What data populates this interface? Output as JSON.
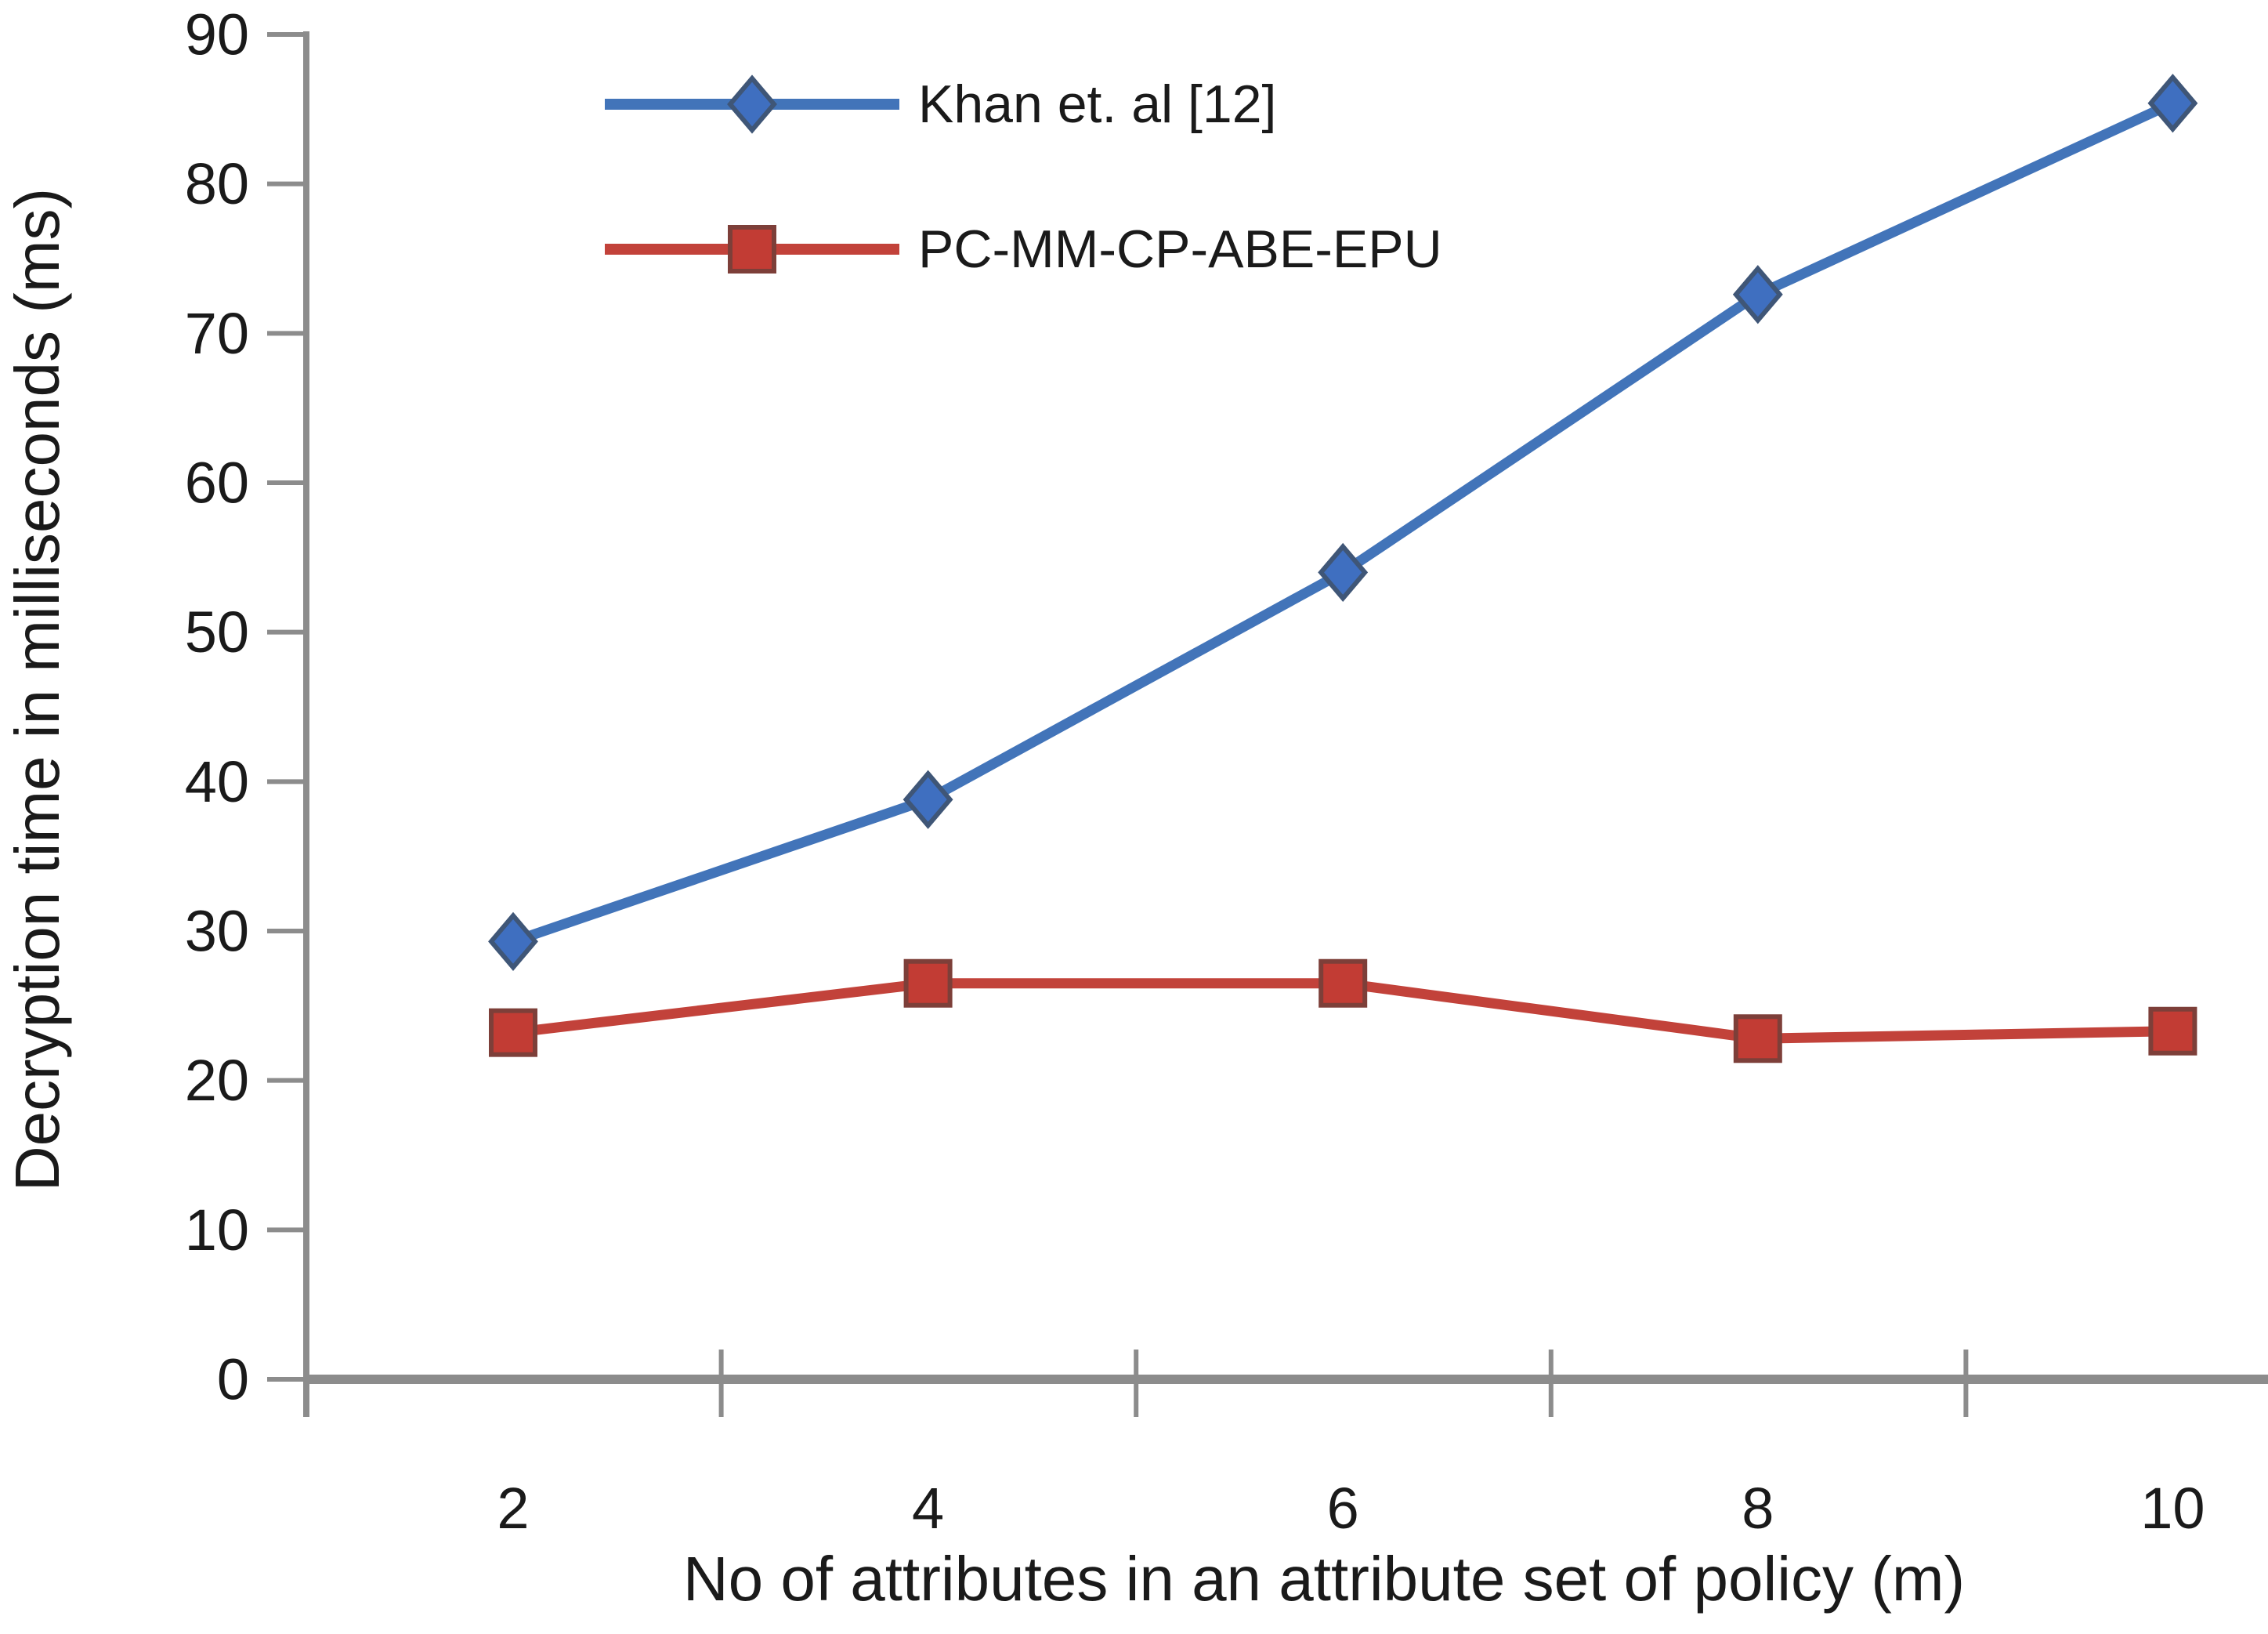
{
  "figure": {
    "background": "#ffffff",
    "description": "Line chart comparing decryption time of two CP-ABE schemes"
  },
  "chart_data": {
    "type": "line",
    "title": "",
    "xlabel": "No of attributes in an attribute set of policy  (m)",
    "ylabel": "Decryption time in milliseconds (ms)",
    "categories": [
      "2",
      "4",
      "6",
      "8",
      "10"
    ],
    "yticks": [
      "0",
      "10",
      "20",
      "30",
      "40",
      "50",
      "60",
      "70",
      "80",
      "90"
    ],
    "ylim": [
      0,
      90
    ],
    "ytick_step": 10,
    "grid": false,
    "legend_position": "top-inside-left",
    "axis_color": "#8c8c8c",
    "text_color": "#1a1a1a",
    "series": [
      {
        "name": "Khan et. al [12]",
        "marker": "diamond",
        "color": "#4274b9",
        "marker_fill": "#3f6fc0",
        "marker_stroke": "#3f5677",
        "values": [
          29.3,
          38.8,
          54,
          72.6,
          85.4
        ]
      },
      {
        "name": "PC-MM-CP-ABE-EPU",
        "marker": "square",
        "color": "#c2423a",
        "marker_fill": "#c23c34",
        "marker_stroke": "#7d3f39",
        "values": [
          23.2,
          26.5,
          26.5,
          22.8,
          23.3
        ]
      }
    ]
  }
}
